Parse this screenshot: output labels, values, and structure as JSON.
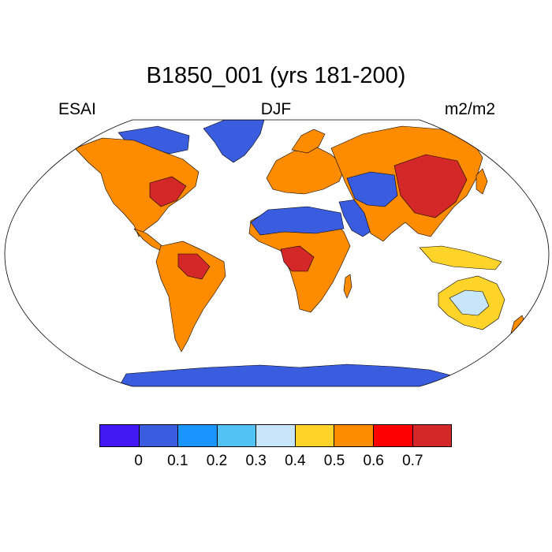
{
  "title": "B1850_001 (yrs 181-200)",
  "subtitle_left": "ESAI",
  "subtitle_center": "DJF",
  "subtitle_right": "m2/m2",
  "colorbar": {
    "colors": [
      "#4417f5",
      "#3a5de0",
      "#1a95ff",
      "#52c2f5",
      "#c8e6f9",
      "#ffd42a",
      "#ff8c00",
      "#ff0000",
      "#d42828"
    ],
    "tick_labels": [
      "0",
      "0.1",
      "0.2",
      "0.3",
      "0.4",
      "0.5",
      "0.6",
      "0.7"
    ]
  },
  "map_colors": {
    "ocean": "#ffffff",
    "coastline": "#000000",
    "frame": "#000000"
  }
}
